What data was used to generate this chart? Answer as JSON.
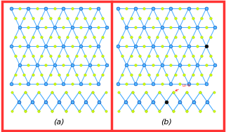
{
  "bg_color": "#ffffff",
  "border_color": "#ff3333",
  "border_width": 2.5,
  "hf_color_outer": "#1a8cff",
  "hf_color_inner": "#55bbff",
  "s_color": "#ccff00",
  "s_edge_color": "#aacc00",
  "dopant_color": "#111111",
  "bond_color": "#44aaff",
  "label_a": "(a)",
  "label_b": "(b)",
  "annotation_color": "#ff2222",
  "annotation_text": "Ln-S"
}
